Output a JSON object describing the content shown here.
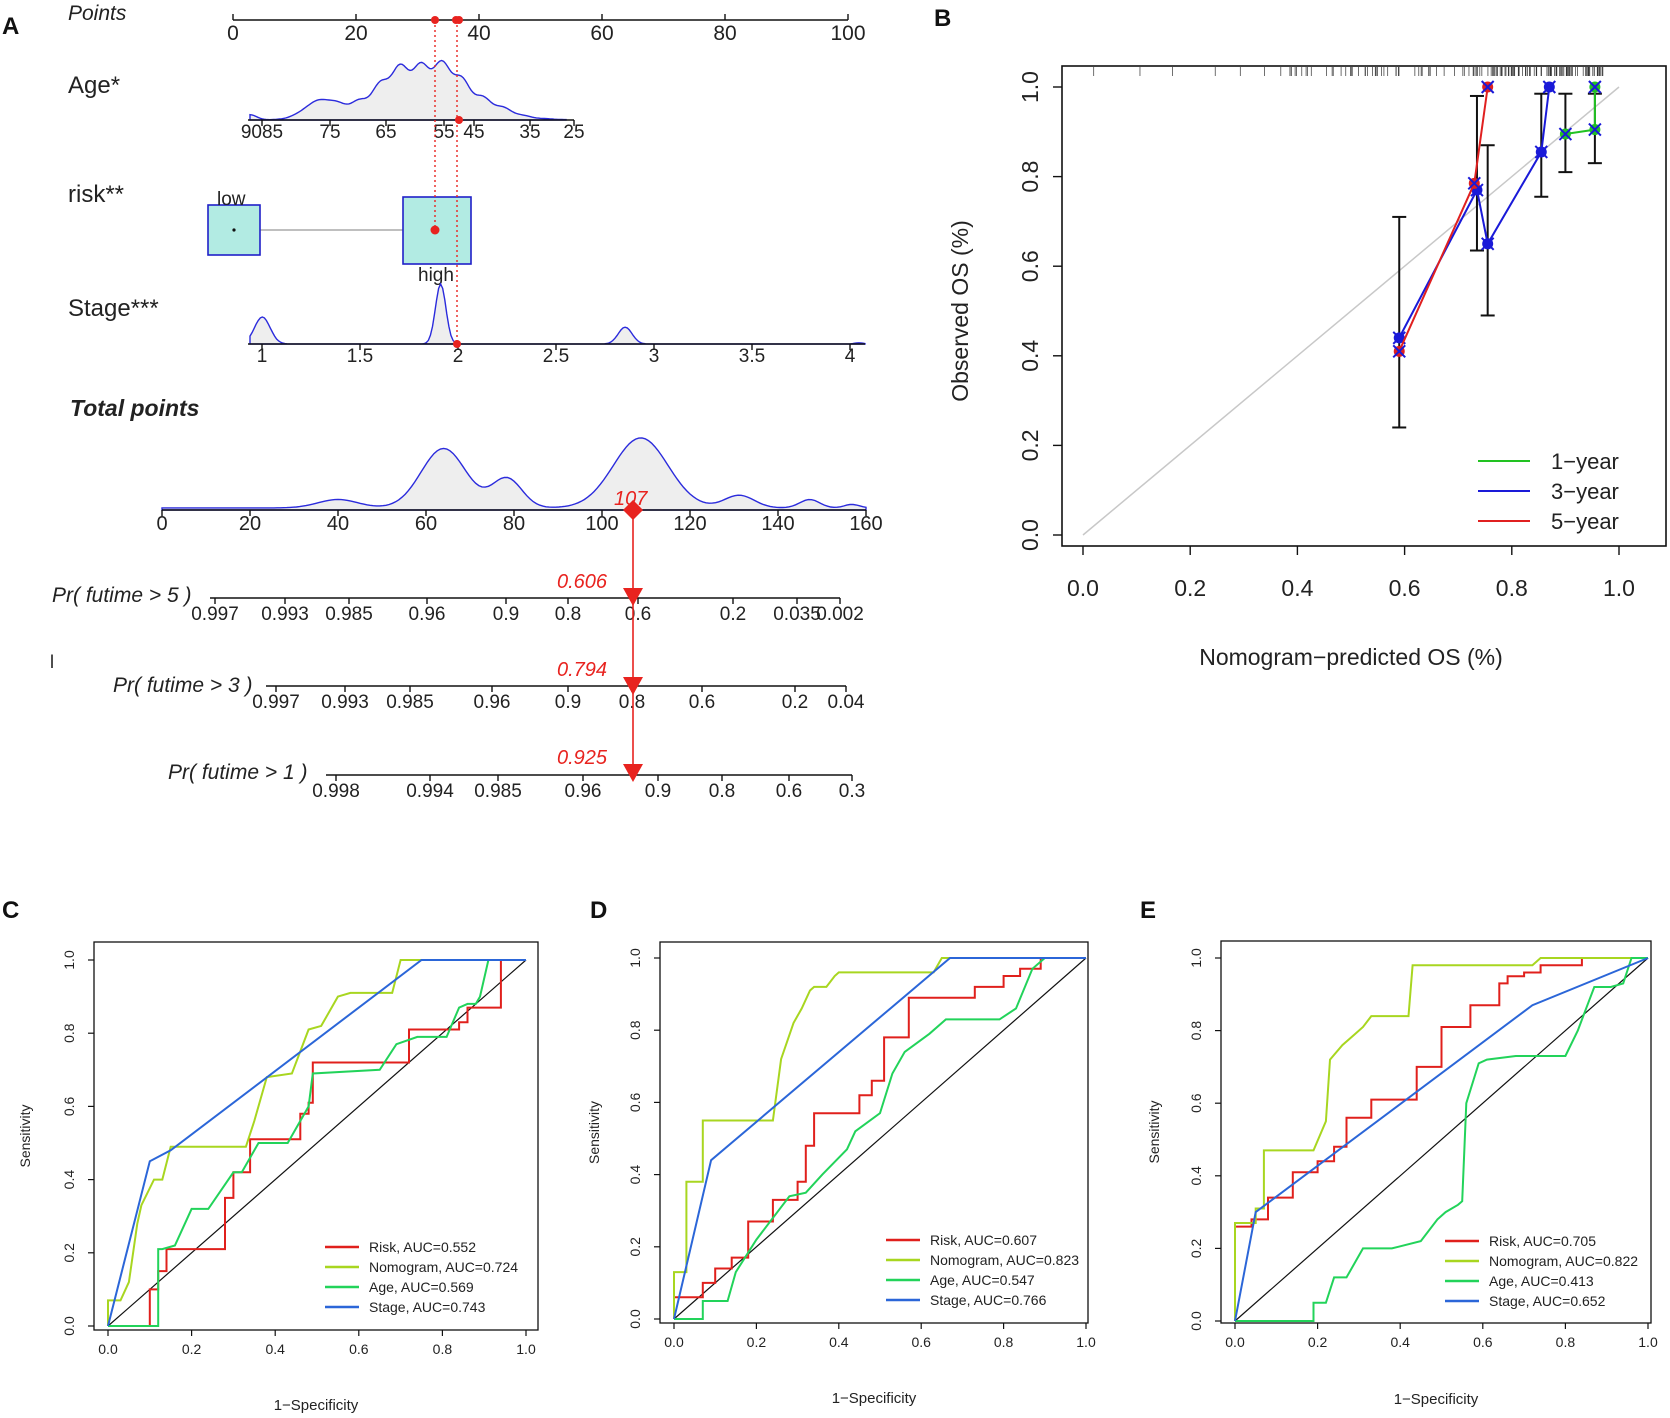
{
  "panels": {
    "A": "A",
    "B": "B",
    "C": "C",
    "D": "D",
    "E": "E"
  },
  "nomogram": {
    "points_label": "Points",
    "points_ticks": [
      "0",
      "20",
      "40",
      "60",
      "80",
      "100"
    ],
    "age_label": "Age*",
    "age_ticks": [
      "9085",
      "75",
      "65",
      "55",
      "45",
      "35",
      "25"
    ],
    "risk_label": "risk**",
    "risk_low": "low",
    "risk_high": "high",
    "stage_label": "Stage***",
    "stage_ticks": [
      "1",
      "1.5",
      "2",
      "2.5",
      "3",
      "3.5",
      "4"
    ],
    "total_label": "Total points",
    "total_ticks": [
      "0",
      "20",
      "40",
      "60",
      "80",
      "100",
      "120",
      "140",
      "160"
    ],
    "total_value": "107",
    "pr5_label": "Pr( futime > 5 )",
    "pr5_ticks": [
      "0.997",
      "0.993",
      "0.985",
      "0.96",
      "0.9",
      "0.8",
      "0.6",
      "0.2",
      "0.035",
      "0.002"
    ],
    "pr5_value": "0.606",
    "stray_label": "l",
    "pr3_label": "Pr( futime > 3 )",
    "pr3_ticks": [
      "0.997",
      "0.993",
      "0.985",
      "0.96",
      "0.9",
      "0.8",
      "0.6",
      "0.2",
      "0.04"
    ],
    "pr3_value": "0.794",
    "pr1_label": "Pr( futime > 1 )",
    "pr1_ticks": [
      "0.998",
      "0.994",
      "0.985",
      "0.96",
      "0.9",
      "0.8",
      "0.6",
      "0.3"
    ],
    "pr1_value": "0.925",
    "patient": {
      "age": 47,
      "risk": "high",
      "stage": 2,
      "total_points": 107
    },
    "colors": {
      "density": "#2b2bdc",
      "marker": "#e8231f",
      "box": "#b2ebe3"
    }
  },
  "chart_data": [
    {
      "panel": "B",
      "type": "line",
      "title": "",
      "xlabel": "Nomogram−predicted OS (%)",
      "ylabel": "Observed OS (%)",
      "xlim": [
        0,
        1
      ],
      "ylim": [
        0,
        1
      ],
      "xticks": [
        "0.0",
        "0.2",
        "0.4",
        "0.6",
        "0.8",
        "1.0"
      ],
      "yticks": [
        "0.0",
        "0.2",
        "0.4",
        "0.6",
        "0.8",
        "1.0"
      ],
      "legend_position": "bottom-right",
      "series": [
        {
          "name": "1−year",
          "color": "#22c222",
          "x": [
            0.9,
            0.955,
            0.955
          ],
          "y": [
            0.895,
            0.905,
            1.0
          ],
          "ci_low": [
            0.81,
            0.83
          ],
          "ci_high": [
            0.985,
            0.985
          ]
        },
        {
          "name": "3−year",
          "color": "#1a1ad8",
          "x": [
            0.59,
            0.735,
            0.755,
            0.855,
            0.87
          ],
          "y": [
            0.44,
            0.77,
            0.65,
            0.855,
            1.0
          ],
          "ci_low": [
            0.24,
            0.635,
            0.49,
            0.755
          ],
          "ci_high": [
            0.71,
            0.98,
            0.87,
            0.985
          ]
        },
        {
          "name": "5−year",
          "color": "#e02020",
          "x": [
            0.59,
            0.73,
            0.755
          ],
          "y": [
            0.41,
            0.785,
            1.0
          ]
        }
      ]
    },
    {
      "panel": "C",
      "type": "line",
      "xlabel": "1−Specificity",
      "ylabel": "Sensitivity",
      "xlim": [
        0,
        1
      ],
      "ylim": [
        0,
        1
      ],
      "xticks": [
        "0.0",
        "0.2",
        "0.4",
        "0.6",
        "0.8",
        "1.0"
      ],
      "yticks": [
        "0.0",
        "0.2",
        "0.4",
        "0.6",
        "0.8",
        "1.0"
      ],
      "legend_position": "bottom-right",
      "series": [
        {
          "name": "Risk, AUC=0.552",
          "color": "#e0201c",
          "x": [
            0,
            0.1,
            0.1,
            0.12,
            0.12,
            0.14,
            0.14,
            0.28,
            0.28,
            0.3,
            0.3,
            0.34,
            0.34,
            0.46,
            0.46,
            0.48,
            0.48,
            0.49,
            0.49,
            0.72,
            0.72,
            0.84,
            0.84,
            0.86,
            0.86,
            0.94,
            0.94,
            1.0
          ],
          "y": [
            0,
            0,
            0.1,
            0.1,
            0.15,
            0.15,
            0.21,
            0.21,
            0.35,
            0.35,
            0.42,
            0.42,
            0.51,
            0.51,
            0.58,
            0.58,
            0.61,
            0.61,
            0.72,
            0.72,
            0.81,
            0.81,
            0.83,
            0.83,
            0.87,
            0.87,
            1.0,
            1.0
          ]
        },
        {
          "name": "Nomogram, AUC=0.724",
          "color": "#a8d620",
          "x": [
            0,
            0,
            0.03,
            0.05,
            0.07,
            0.08,
            0.11,
            0.13,
            0.15,
            0.19,
            0.33,
            0.35,
            0.38,
            0.44,
            0.48,
            0.51,
            0.55,
            0.58,
            0.68,
            0.7,
            1.0
          ],
          "y": [
            0,
            0.07,
            0.07,
            0.12,
            0.28,
            0.33,
            0.4,
            0.4,
            0.49,
            0.49,
            0.49,
            0.56,
            0.68,
            0.69,
            0.81,
            0.82,
            0.9,
            0.91,
            0.91,
            1.0,
            1.0
          ]
        },
        {
          "name": "Age, AUC=0.569",
          "color": "#22d35a",
          "x": [
            0,
            0.12,
            0.12,
            0.13,
            0.16,
            0.2,
            0.24,
            0.3,
            0.32,
            0.36,
            0.43,
            0.48,
            0.49,
            0.65,
            0.69,
            0.74,
            0.81,
            0.84,
            0.86,
            0.88,
            0.89,
            0.91,
            1.0
          ],
          "y": [
            0,
            0,
            0.21,
            0.21,
            0.22,
            0.32,
            0.32,
            0.42,
            0.42,
            0.5,
            0.5,
            0.6,
            0.69,
            0.7,
            0.77,
            0.79,
            0.79,
            0.87,
            0.88,
            0.88,
            0.9,
            1.0,
            1.0
          ]
        },
        {
          "name": "Stage, AUC=0.743",
          "color": "#2b66d8",
          "x": [
            0,
            0.1,
            0.15,
            0.75,
            1.0
          ],
          "y": [
            0,
            0.45,
            0.48,
            1.0,
            1.0
          ]
        }
      ]
    },
    {
      "panel": "D",
      "type": "line",
      "xlabel": "1−Specificity",
      "ylabel": "Sensitivity",
      "xlim": [
        0,
        1
      ],
      "ylim": [
        0,
        1
      ],
      "xticks": [
        "0.0",
        "0.2",
        "0.4",
        "0.6",
        "0.8",
        "1.0"
      ],
      "yticks": [
        "0.0",
        "0.2",
        "0.4",
        "0.6",
        "0.8",
        "1.0"
      ],
      "legend_position": "bottom-right",
      "series": [
        {
          "name": "Risk, AUC=0.607",
          "color": "#e0201c",
          "x": [
            0,
            0,
            0.07,
            0.07,
            0.1,
            0.1,
            0.14,
            0.14,
            0.18,
            0.18,
            0.24,
            0.24,
            0.3,
            0.3,
            0.32,
            0.32,
            0.34,
            0.34,
            0.45,
            0.45,
            0.48,
            0.48,
            0.51,
            0.51,
            0.57,
            0.57,
            0.64,
            0.64,
            0.73,
            0.73,
            0.8,
            0.8,
            0.84,
            0.84,
            0.86,
            0.86,
            0.89,
            0.89,
            1.0
          ],
          "y": [
            0,
            0.06,
            0.06,
            0.1,
            0.1,
            0.14,
            0.14,
            0.17,
            0.17,
            0.27,
            0.27,
            0.33,
            0.33,
            0.38,
            0.38,
            0.48,
            0.48,
            0.57,
            0.57,
            0.62,
            0.62,
            0.66,
            0.66,
            0.78,
            0.78,
            0.89,
            0.89,
            0.89,
            0.89,
            0.92,
            0.92,
            0.95,
            0.95,
            0.97,
            0.97,
            0.97,
            0.97,
            1.0,
            1.0
          ]
        },
        {
          "name": "Nomogram, AUC=0.823",
          "color": "#a8d620",
          "x": [
            0,
            0,
            0.03,
            0.03,
            0.07,
            0.07,
            0.12,
            0.12,
            0.24,
            0.26,
            0.29,
            0.31,
            0.33,
            0.34,
            0.37,
            0.39,
            0.4,
            0.42,
            0.55,
            0.63,
            0.65,
            1.0
          ],
          "y": [
            0,
            0.13,
            0.13,
            0.38,
            0.38,
            0.55,
            0.55,
            0.55,
            0.55,
            0.72,
            0.82,
            0.86,
            0.91,
            0.92,
            0.92,
            0.95,
            0.96,
            0.96,
            0.96,
            0.96,
            1.0,
            1.0
          ]
        },
        {
          "name": "Age, AUC=0.547",
          "color": "#22d35a",
          "x": [
            0,
            0.07,
            0.07,
            0.13,
            0.15,
            0.2,
            0.28,
            0.32,
            0.36,
            0.42,
            0.44,
            0.5,
            0.53,
            0.56,
            0.62,
            0.66,
            0.69,
            0.79,
            0.83,
            0.87,
            0.9,
            1.0
          ],
          "y": [
            0,
            0,
            0.05,
            0.05,
            0.13,
            0.22,
            0.34,
            0.35,
            0.4,
            0.47,
            0.52,
            0.57,
            0.68,
            0.74,
            0.79,
            0.83,
            0.83,
            0.83,
            0.86,
            0.97,
            1.0,
            1.0
          ]
        },
        {
          "name": "Stage, AUC=0.766",
          "color": "#2b66d8",
          "x": [
            0,
            0.09,
            0.67,
            1.0
          ],
          "y": [
            0,
            0.44,
            1.0,
            1.0
          ]
        }
      ]
    },
    {
      "panel": "E",
      "type": "line",
      "xlabel": "1−Specificity",
      "ylabel": "Sensitivity",
      "xlim": [
        0,
        1
      ],
      "ylim": [
        0,
        1
      ],
      "xticks": [
        "0.0",
        "0.2",
        "0.4",
        "0.6",
        "0.8",
        "1.0"
      ],
      "yticks": [
        "0.0",
        "0.2",
        "0.4",
        "0.6",
        "0.8",
        "1.0"
      ],
      "legend_position": "bottom-right",
      "series": [
        {
          "name": "Risk, AUC=0.705",
          "color": "#e0201c",
          "x": [
            0,
            0,
            0.04,
            0.04,
            0.08,
            0.08,
            0.14,
            0.14,
            0.2,
            0.2,
            0.24,
            0.24,
            0.27,
            0.27,
            0.33,
            0.33,
            0.44,
            0.44,
            0.5,
            0.5,
            0.57,
            0.57,
            0.64,
            0.64,
            0.66,
            0.66,
            0.7,
            0.7,
            0.74,
            0.74,
            0.84,
            0.84,
            1.0
          ],
          "y": [
            0,
            0.26,
            0.26,
            0.28,
            0.28,
            0.34,
            0.34,
            0.41,
            0.41,
            0.44,
            0.44,
            0.48,
            0.48,
            0.56,
            0.56,
            0.61,
            0.61,
            0.7,
            0.7,
            0.81,
            0.81,
            0.87,
            0.87,
            0.93,
            0.93,
            0.95,
            0.95,
            0.96,
            0.96,
            0.98,
            0.98,
            1.0,
            1.0
          ]
        },
        {
          "name": "Nomogram, AUC=0.822",
          "color": "#a8d620",
          "x": [
            0,
            0,
            0.05,
            0.05,
            0.07,
            0.07,
            0.12,
            0.12,
            0.19,
            0.22,
            0.23,
            0.26,
            0.29,
            0.31,
            0.33,
            0.37,
            0.42,
            0.43,
            0.7,
            0.72,
            0.74,
            1.0
          ],
          "y": [
            0,
            0.27,
            0.27,
            0.31,
            0.31,
            0.47,
            0.47,
            0.47,
            0.47,
            0.55,
            0.72,
            0.76,
            0.79,
            0.81,
            0.84,
            0.84,
            0.84,
            0.98,
            0.98,
            0.98,
            1.0,
            1.0
          ]
        },
        {
          "name": "Age, AUC=0.413",
          "color": "#22d35a",
          "x": [
            0,
            0.19,
            0.19,
            0.22,
            0.24,
            0.27,
            0.31,
            0.38,
            0.45,
            0.49,
            0.51,
            0.54,
            0.55,
            0.56,
            0.59,
            0.61,
            0.68,
            0.72,
            0.8,
            0.83,
            0.85,
            0.87,
            0.91,
            0.94,
            0.96,
            1.0
          ],
          "y": [
            0,
            0,
            0.05,
            0.05,
            0.12,
            0.12,
            0.2,
            0.2,
            0.22,
            0.28,
            0.3,
            0.32,
            0.33,
            0.6,
            0.71,
            0.72,
            0.73,
            0.73,
            0.73,
            0.8,
            0.86,
            0.92,
            0.92,
            0.93,
            1.0,
            1.0
          ]
        },
        {
          "name": "Stage, AUC=0.652",
          "color": "#2b66d8",
          "x": [
            0,
            0.05,
            0.72,
            1.0
          ],
          "y": [
            0,
            0.3,
            0.87,
            1.0
          ]
        }
      ]
    }
  ]
}
